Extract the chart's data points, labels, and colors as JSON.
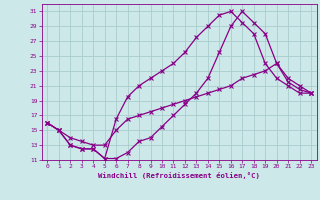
{
  "xlabel": "Windchill (Refroidissement éolien,°C)",
  "background_color": "#cce8e8",
  "grid_color": "#aacccc",
  "line_color": "#880088",
  "xlim": [
    -0.5,
    23.5
  ],
  "ylim": [
    11,
    32
  ],
  "xticks": [
    0,
    1,
    2,
    3,
    4,
    5,
    6,
    7,
    8,
    9,
    10,
    11,
    12,
    13,
    14,
    15,
    16,
    17,
    18,
    19,
    20,
    21,
    22,
    23
  ],
  "yticks": [
    11,
    13,
    15,
    17,
    19,
    21,
    23,
    25,
    27,
    29,
    31
  ],
  "line1_x": [
    0,
    1,
    2,
    3,
    4,
    5,
    6,
    7,
    8,
    9,
    10,
    11,
    12,
    13,
    14,
    15,
    16,
    17,
    18,
    19,
    20,
    21,
    22,
    23
  ],
  "line1_y": [
    16,
    15,
    13,
    12.5,
    12.5,
    11.2,
    11.2,
    12,
    13.5,
    14,
    15.5,
    17,
    18.5,
    20,
    22,
    25.5,
    29,
    31,
    29.5,
    28,
    24,
    22,
    21,
    20
  ],
  "line2_x": [
    0,
    1,
    2,
    3,
    4,
    5,
    6,
    7,
    8,
    9,
    10,
    11,
    12,
    13,
    14,
    15,
    16,
    17,
    18,
    19,
    20,
    21,
    22,
    23
  ],
  "line2_y": [
    16,
    15,
    13,
    12.5,
    12.5,
    11.2,
    16.5,
    19.5,
    21,
    22,
    23,
    24,
    25.5,
    27.5,
    29,
    30.5,
    31,
    29.5,
    28,
    24,
    22,
    21,
    20,
    20
  ],
  "line3_x": [
    0,
    1,
    2,
    3,
    4,
    5,
    6,
    7,
    8,
    9,
    10,
    11,
    12,
    13,
    14,
    15,
    16,
    17,
    18,
    19,
    20,
    21,
    22,
    23
  ],
  "line3_y": [
    16,
    15,
    14,
    13.5,
    13,
    13,
    15,
    16.5,
    17,
    17.5,
    18,
    18.5,
    19,
    19.5,
    20,
    20.5,
    21,
    22,
    22.5,
    23,
    24,
    21.5,
    20.5,
    20
  ],
  "marker": "x",
  "markersize": 3,
  "linewidth": 0.9
}
